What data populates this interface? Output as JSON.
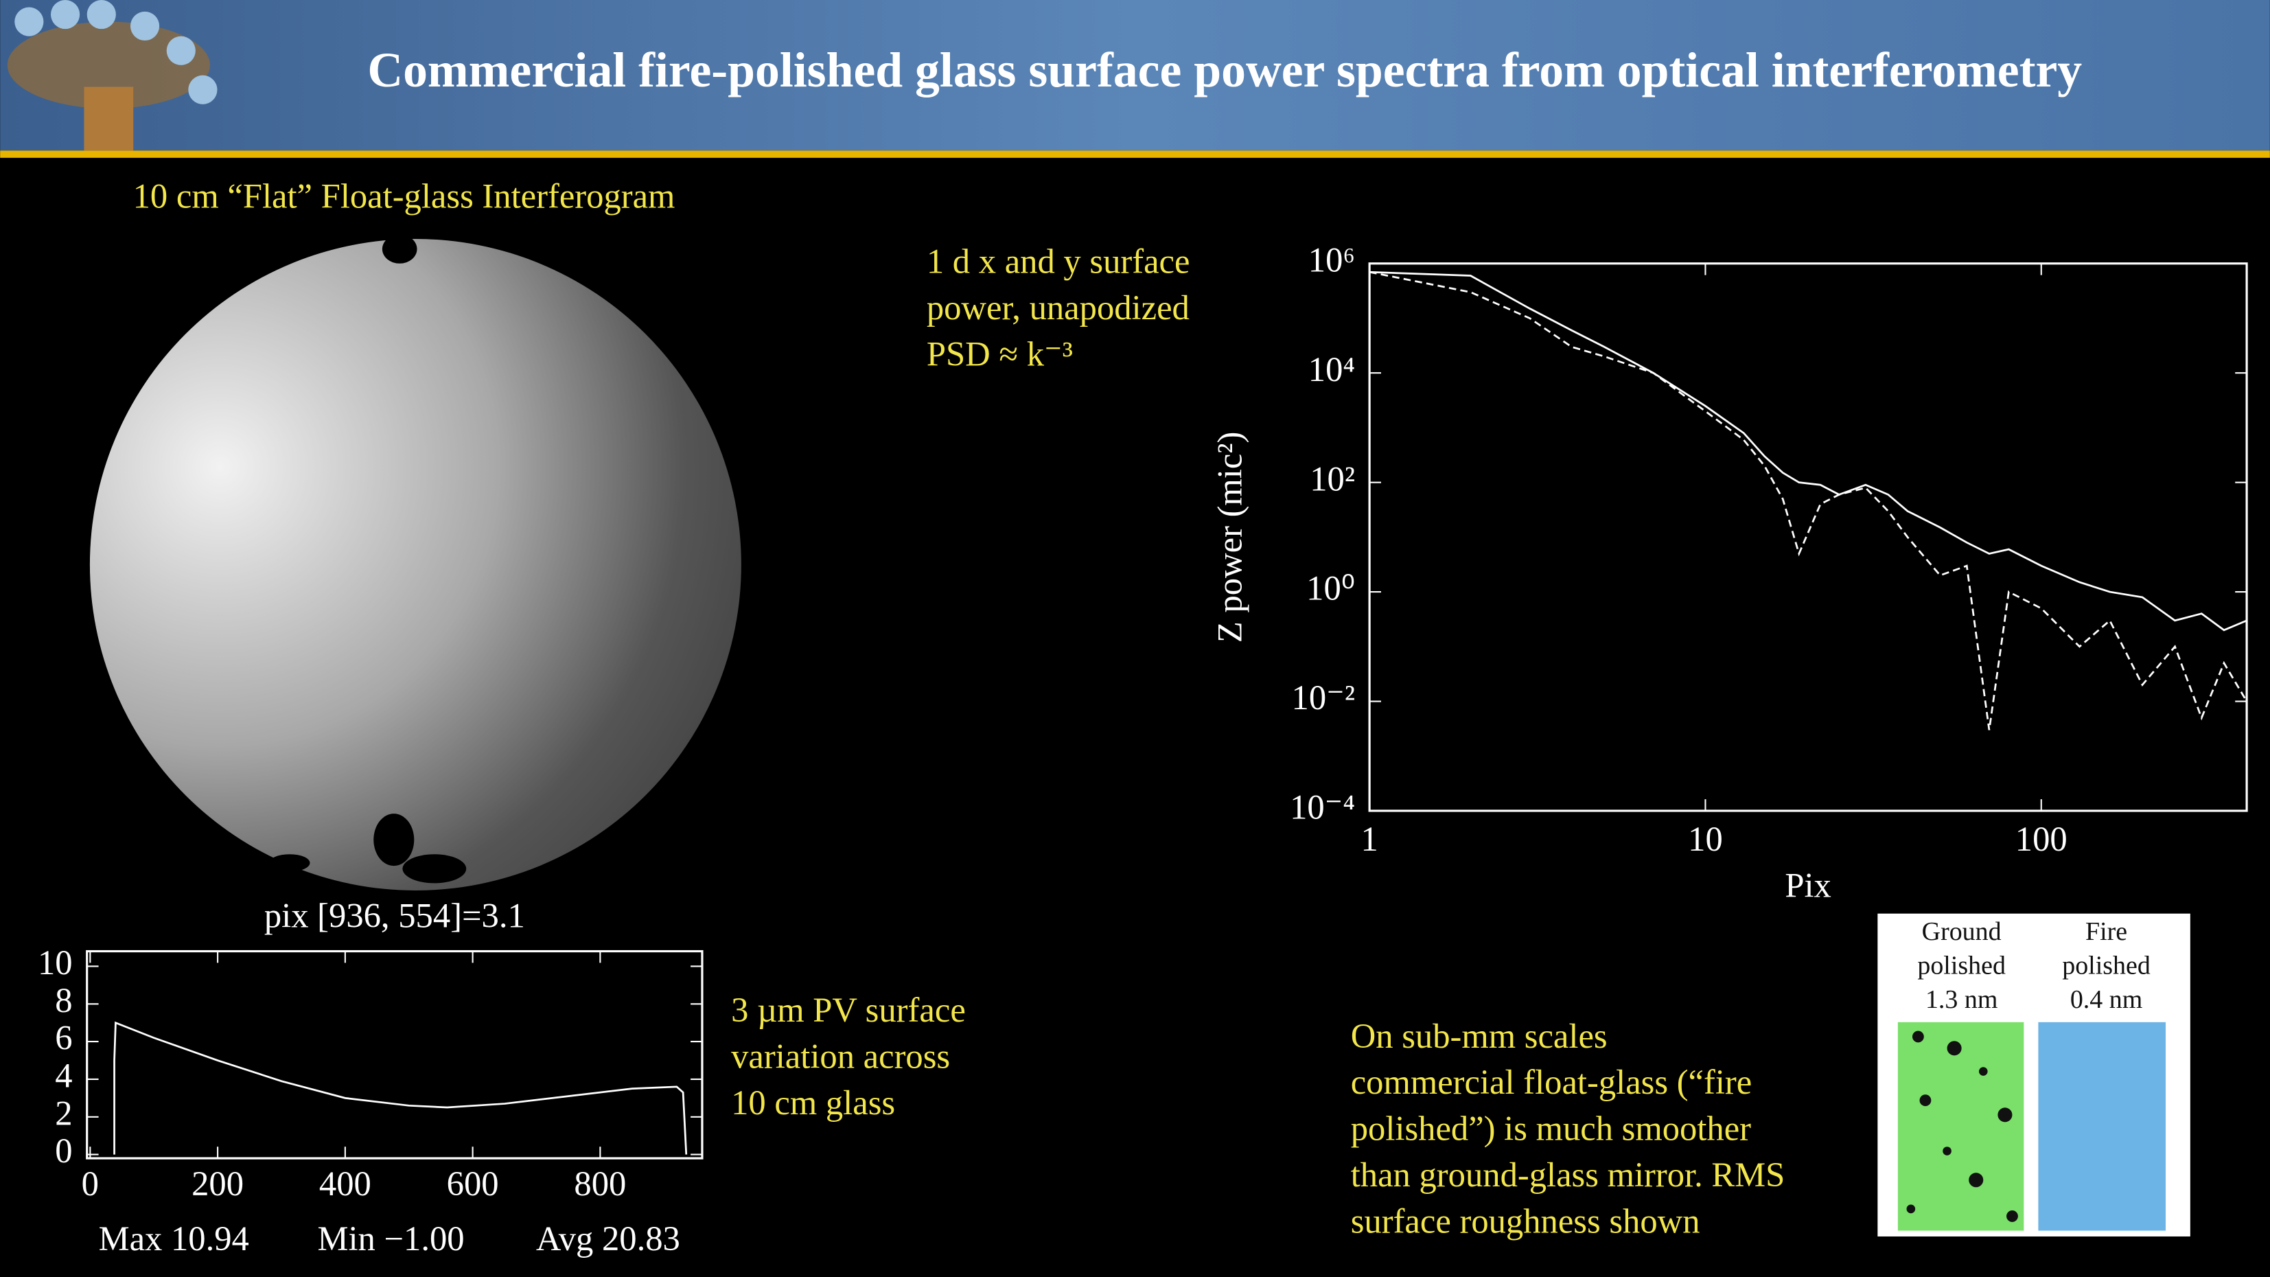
{
  "title": "Commercial fire-polished glass surface power spectra from optical interferometry",
  "interferogram_caption": "10 cm “Flat” Float-glass Interferogram",
  "psd_note": [
    "1 d x and y surface",
    "power, unapodized",
    "PSD ≈ k⁻³"
  ],
  "pv_note": [
    "3 µm PV surface",
    "variation across",
    "10 cm glass"
  ],
  "roughness_note": [
    "On sub-mm scales",
    "commercial float-glass (“fire",
    "polished”) is much smoother",
    "than ground-glass mirror. RMS",
    "surface roughness shown"
  ],
  "samples": [
    {
      "label": [
        "Ground",
        "polished",
        "1.3 nm"
      ]
    },
    {
      "label": [
        "Fire",
        "polished",
        "0.4 nm"
      ]
    }
  ],
  "chart_data": [
    {
      "type": "line",
      "x_label": "Pix",
      "y_label": "Z power (mic²)",
      "log_x": true,
      "log_y": true,
      "xlim": [
        1,
        409
      ],
      "ylim": [
        0.0001,
        1000000
      ],
      "xticks": [
        1,
        10,
        100
      ],
      "yticks": [
        {
          "value": 1000000,
          "label": "10⁶"
        },
        {
          "value": 10000,
          "label": "10⁴"
        },
        {
          "value": 100,
          "label": "10²"
        },
        {
          "value": 1,
          "label": "10⁰"
        },
        {
          "value": 0.01,
          "label": "10⁻²"
        },
        {
          "value": 0.0001,
          "label": "10⁻⁴"
        }
      ],
      "x": [
        1,
        2,
        3,
        4,
        5,
        7,
        10,
        13,
        15,
        17,
        19,
        22,
        25,
        30,
        35,
        40,
        50,
        60,
        70,
        80,
        100,
        130,
        160,
        200,
        250,
        300,
        350,
        409
      ],
      "series": [
        {
          "color": "#ffffff",
          "dashed": false,
          "values": [
            700000,
            600000,
            150000,
            60000,
            30000,
            10000,
            2500,
            800,
            300,
            150,
            100,
            90,
            60,
            90,
            60,
            30,
            15,
            8,
            5,
            6,
            3,
            1.5,
            1,
            0.8,
            0.3,
            0.4,
            0.2,
            0.3
          ]
        },
        {
          "color": "#ffffff",
          "dashed": true,
          "values": [
            700000,
            300000,
            100000,
            30000,
            20000,
            10000,
            2000,
            600,
            200,
            50,
            5,
            40,
            60,
            80,
            30,
            10,
            2,
            3,
            0.003,
            1,
            0.5,
            0.1,
            0.3,
            0.02,
            0.1,
            0.005,
            0.05,
            0.01
          ]
        }
      ]
    },
    {
      "type": "line",
      "title": "pix [936, 554]=3.1",
      "xlim": [
        -5,
        960
      ],
      "ylim": [
        -0.2,
        10.8
      ],
      "xticks": [
        0,
        200,
        400,
        600,
        800
      ],
      "yticks": [
        0,
        2,
        4,
        6,
        8,
        10
      ],
      "x": [
        38,
        38,
        40,
        100,
        200,
        300,
        400,
        500,
        560,
        650,
        750,
        850,
        920,
        930,
        935
      ],
      "series": [
        {
          "color": "#ffffff",
          "dashed": false,
          "values": [
            0,
            5,
            7,
            6.2,
            5,
            3.9,
            3,
            2.6,
            2.5,
            2.7,
            3.1,
            3.5,
            3.6,
            3.3,
            0
          ]
        }
      ],
      "stats": [
        "Max 10.94",
        "Min −1.00",
        "Avg 20.83"
      ]
    }
  ]
}
